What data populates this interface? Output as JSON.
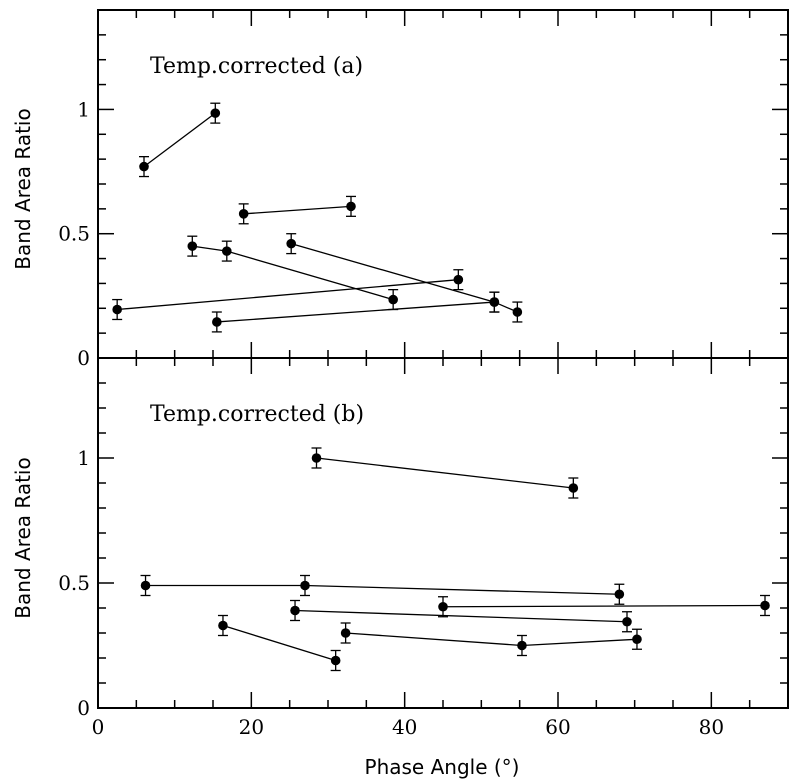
{
  "chart_data": [
    {
      "type": "scatter",
      "panel": "a",
      "title": "Temp.corrected (a)",
      "xlabel": "",
      "ylabel": "Band Area Ratio",
      "xlim": [
        0,
        90
      ],
      "ylim": [
        0,
        1.4
      ],
      "yticks": [
        {
          "value": 0,
          "label": "0"
        },
        {
          "value": 0.5,
          "label": "0.5"
        },
        {
          "value": 1,
          "label": "1"
        }
      ],
      "xticks": [],
      "error": 0.04,
      "segments": [
        {
          "points": [
            {
              "x": 6.0,
              "y": 0.77
            },
            {
              "x": 15.3,
              "y": 0.985
            }
          ]
        },
        {
          "points": [
            {
              "x": 19.0,
              "y": 0.58
            },
            {
              "x": 33.0,
              "y": 0.61
            }
          ]
        },
        {
          "points": [
            {
              "x": 12.3,
              "y": 0.45
            },
            {
              "x": 16.8,
              "y": 0.43
            },
            {
              "x": 38.5,
              "y": 0.235
            }
          ]
        },
        {
          "points": [
            {
              "x": 25.2,
              "y": 0.46
            },
            {
              "x": 51.7,
              "y": 0.225
            },
            {
              "x": 54.7,
              "y": 0.185
            }
          ]
        },
        {
          "points": [
            {
              "x": 2.5,
              "y": 0.195
            },
            {
              "x": 47.0,
              "y": 0.315
            }
          ]
        },
        {
          "points": [
            {
              "x": 15.5,
              "y": 0.145
            },
            {
              "x": 51.7,
              "y": 0.225
            }
          ]
        }
      ]
    },
    {
      "type": "scatter",
      "panel": "b",
      "title": "Temp.corrected (b)",
      "xlabel": "Phase Angle (°)",
      "ylabel": "Band Area Ratio",
      "xlim": [
        0,
        90
      ],
      "ylim": [
        0,
        1.4
      ],
      "yticks": [
        {
          "value": 0,
          "label": "0"
        },
        {
          "value": 0.5,
          "label": "0.5"
        },
        {
          "value": 1,
          "label": "1"
        }
      ],
      "xticks": [
        {
          "value": 0,
          "label": "0"
        },
        {
          "value": 20,
          "label": "20"
        },
        {
          "value": 40,
          "label": "40"
        },
        {
          "value": 60,
          "label": "60"
        },
        {
          "value": 80,
          "label": "80"
        }
      ],
      "error": 0.04,
      "segments": [
        {
          "points": [
            {
              "x": 28.5,
              "y": 1.0
            },
            {
              "x": 62.0,
              "y": 0.88
            }
          ]
        },
        {
          "points": [
            {
              "x": 6.2,
              "y": 0.49
            },
            {
              "x": 27.0,
              "y": 0.49
            },
            {
              "x": 68.0,
              "y": 0.455
            }
          ]
        },
        {
          "points": [
            {
              "x": 25.7,
              "y": 0.39
            },
            {
              "x": 69.0,
              "y": 0.345
            }
          ]
        },
        {
          "points": [
            {
              "x": 45.0,
              "y": 0.405
            },
            {
              "x": 87.0,
              "y": 0.41
            }
          ]
        },
        {
          "points": [
            {
              "x": 16.3,
              "y": 0.33
            },
            {
              "x": 31.0,
              "y": 0.19
            }
          ]
        },
        {
          "points": [
            {
              "x": 32.3,
              "y": 0.3
            },
            {
              "x": 55.3,
              "y": 0.25
            },
            {
              "x": 70.3,
              "y": 0.275
            }
          ]
        }
      ]
    }
  ]
}
